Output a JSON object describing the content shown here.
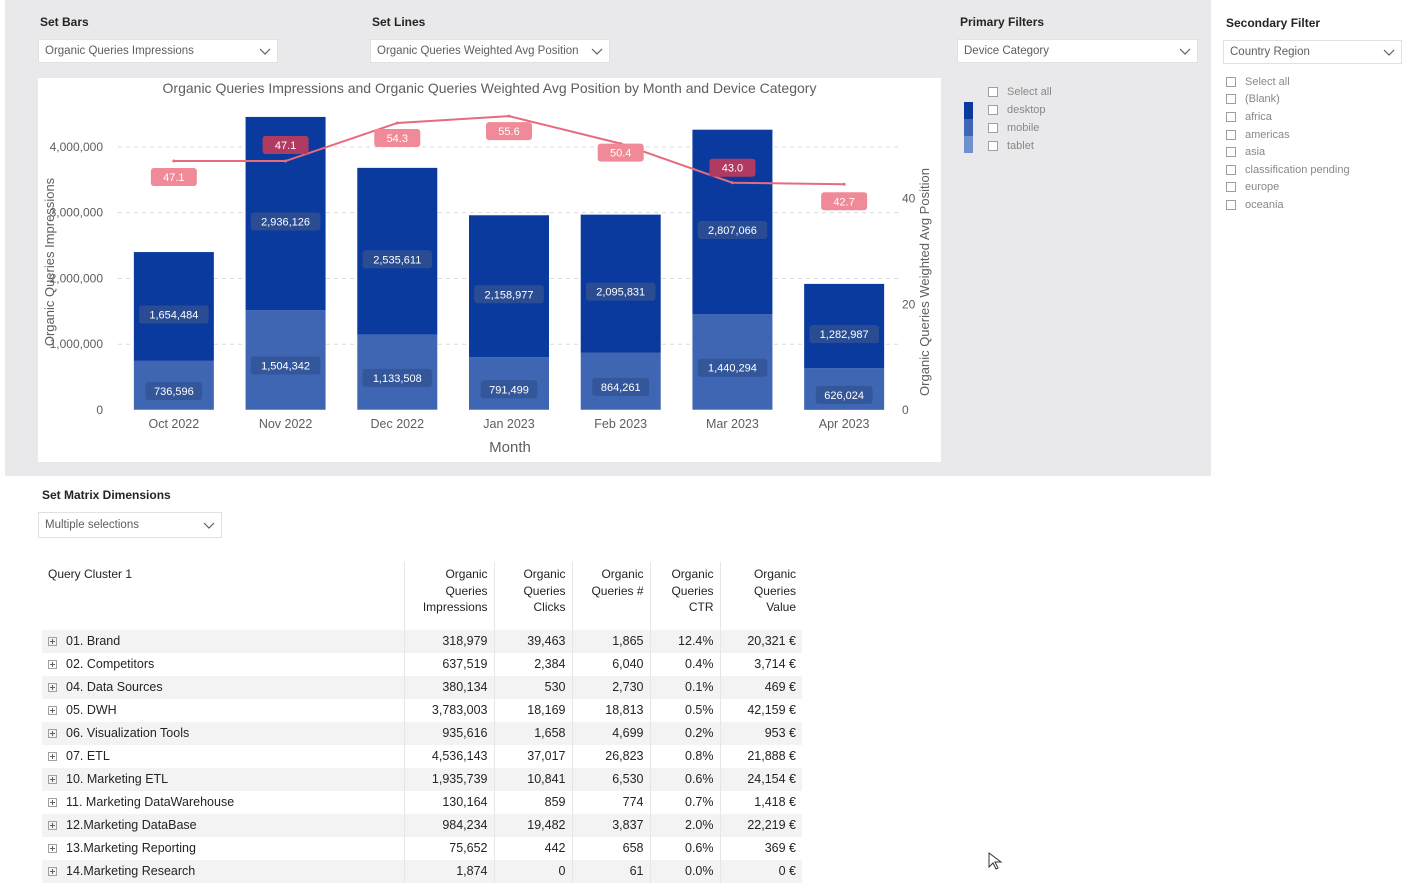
{
  "controls": {
    "set_bars": {
      "label": "Set Bars",
      "value": "Organic Queries Impressions"
    },
    "set_lines": {
      "label": "Set Lines",
      "value": "Organic Queries Weighted Avg Position"
    },
    "primary_filters": {
      "label": "Primary Filters",
      "value": "Device Category",
      "items": [
        "Select all",
        "desktop",
        "mobile",
        "tablet"
      ]
    },
    "secondary_filter": {
      "label": "Secondary Filter",
      "value": "Country Region",
      "items": [
        "Select all",
        "(Blank)",
        "africa",
        "americas",
        "asia",
        "classification pending",
        "europe",
        "oceania"
      ]
    },
    "set_matrix": {
      "label": "Set Matrix Dimensions",
      "value": "Multiple selections"
    }
  },
  "colors": {
    "desktop": "#0a3a9e",
    "mobile": "#3f66b2",
    "tablet": "#6f8fcf",
    "line": "#e66c7d",
    "label_dark": "#2b4a8f",
    "panel": "#e9e9eb"
  },
  "chart_data": {
    "type": "bar",
    "stacked": true,
    "title": "Organic Queries Impressions and Organic Queries Weighted Avg Position by Month and Device Category",
    "xlabel": "Month",
    "ylabel": "Organic Queries Impressions",
    "y2label": "Organic Queries Weighted Avg Position",
    "categories": [
      "Oct 2022",
      "Nov 2022",
      "Dec 2022",
      "Jan 2023",
      "Feb 2023",
      "Mar 2023",
      "Apr 2023"
    ],
    "ylim": [
      0,
      4500000
    ],
    "yticks": [
      0,
      1000000,
      2000000,
      3000000,
      4000000
    ],
    "ytick_labels": [
      "0",
      "1,000,000",
      "2,000,000",
      "3,000,000",
      "4,000,000"
    ],
    "y2lim": [
      0,
      56
    ],
    "y2ticks": [
      0,
      20,
      40
    ],
    "y2tick_labels": [
      "0",
      "20",
      "40"
    ],
    "series": [
      {
        "name": "mobile",
        "values": [
          736596,
          1504342,
          1133508,
          791499,
          864261,
          1440294,
          626024
        ],
        "labels": [
          "736,596",
          "1,504,342",
          "1,133,508",
          "791,499",
          "864,261",
          "1,440,294",
          "626,024"
        ]
      },
      {
        "name": "desktop",
        "values": [
          1654484,
          2936126,
          2535611,
          2158977,
          2095831,
          2807066,
          1282987
        ],
        "labels": [
          "1,654,484",
          "2,936,126",
          "2,535,611",
          "2,158,977",
          "2,095,831",
          "2,807,066",
          "1,282,987"
        ]
      },
      {
        "name": "tablet",
        "values": [
          10000,
          15000,
          12000,
          10000,
          10000,
          14000,
          8000
        ]
      }
    ],
    "line": {
      "name": "Organic Queries Weighted Avg Position",
      "values": [
        47.1,
        47.1,
        54.3,
        55.6,
        50.4,
        43.0,
        42.7
      ],
      "labels": [
        "47.1",
        "47.1",
        "54.3",
        "55.6",
        "50.4",
        "43.0",
        "42.7"
      ]
    },
    "grid": true,
    "legend": "right"
  },
  "matrix": {
    "headers": [
      "Query Cluster 1",
      "Organic Queries Impressions",
      "Organic Queries Clicks",
      "Organic Queries #",
      "Organic Queries CTR",
      "Organic Queries Value"
    ],
    "rows": [
      [
        "01. Brand",
        "318,979",
        "39,463",
        "1,865",
        "12.4%",
        "20,321 €"
      ],
      [
        "02. Competitors",
        "637,519",
        "2,384",
        "6,040",
        "0.4%",
        "3,714 €"
      ],
      [
        "04. Data Sources",
        "380,134",
        "530",
        "2,730",
        "0.1%",
        "469 €"
      ],
      [
        "05. DWH",
        "3,783,003",
        "18,169",
        "18,813",
        "0.5%",
        "42,159 €"
      ],
      [
        "06. Visualization Tools",
        "935,616",
        "1,658",
        "4,699",
        "0.2%",
        "953 €"
      ],
      [
        "07. ETL",
        "4,536,143",
        "37,017",
        "26,823",
        "0.8%",
        "21,888 €"
      ],
      [
        "10. Marketing ETL",
        "1,935,739",
        "10,841",
        "6,530",
        "0.6%",
        "24,154 €"
      ],
      [
        "11. Marketing DataWarehouse",
        "130,164",
        "859",
        "774",
        "0.7%",
        "1,418 €"
      ],
      [
        "12.Marketing DataBase",
        "984,234",
        "19,482",
        "3,837",
        "2.0%",
        "22,219 €"
      ],
      [
        "13.Marketing Reporting",
        "75,652",
        "442",
        "658",
        "0.6%",
        "369 €"
      ],
      [
        "14.Marketing Research",
        "1,874",
        "0",
        "61",
        "0.0%",
        "0 €"
      ]
    ]
  }
}
